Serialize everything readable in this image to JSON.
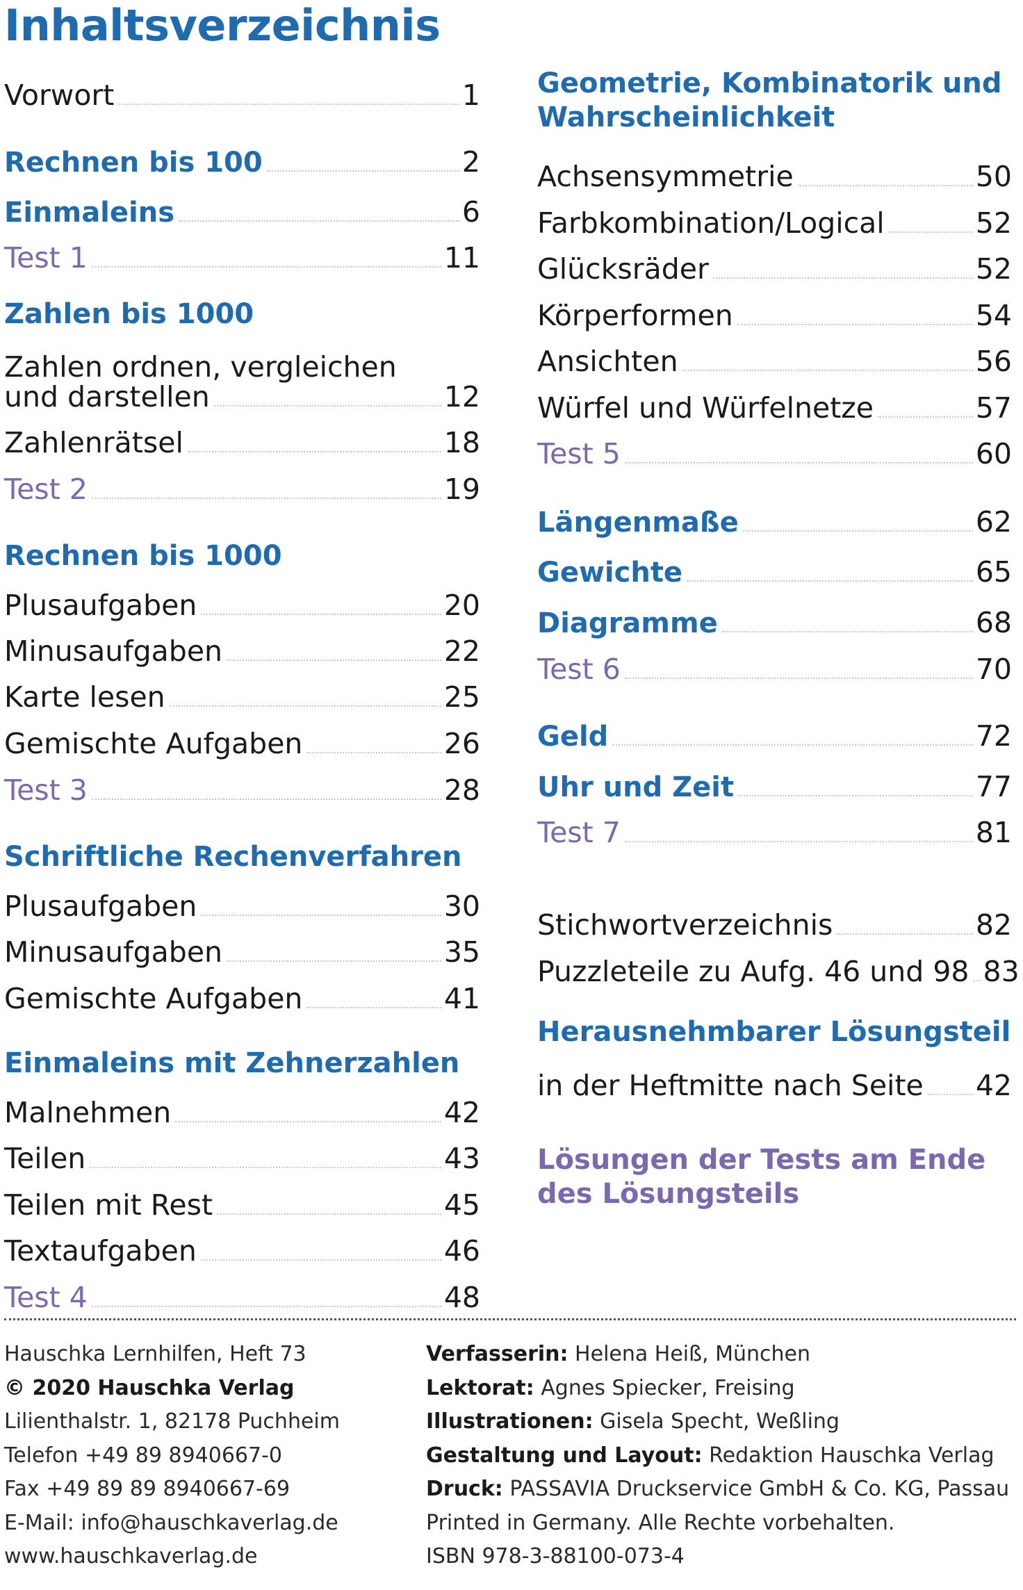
{
  "title": "Inhaltsverzeichnis",
  "left": {
    "vorwort": {
      "label": "Vorwort",
      "page": "1"
    },
    "rechnen100": {
      "label": "Rechnen bis 100",
      "page": "2"
    },
    "einmaleins": {
      "label": "Einmaleins",
      "page": "6"
    },
    "test1": {
      "label": "Test 1",
      "page": "11"
    },
    "zahlen1000_heading": "Zahlen bis 1000",
    "zahlen_ordnen_line1": "Zahlen ordnen, vergleichen",
    "zahlen_ordnen": {
      "label": "und darstellen",
      "page": "12"
    },
    "zahlenraetsel": {
      "label": "Zahlenrätsel",
      "page": "18"
    },
    "test2": {
      "label": "Test 2",
      "page": "19"
    },
    "rechnen1000_heading": "Rechnen bis 1000",
    "plus1": {
      "label": "Plusaufgaben",
      "page": "20"
    },
    "minus1": {
      "label": "Minusaufgaben",
      "page": "22"
    },
    "karte": {
      "label": "Karte lesen",
      "page": "25"
    },
    "gemischt1": {
      "label": "Gemischte Aufgaben",
      "page": "26"
    },
    "test3": {
      "label": "Test 3",
      "page": "28"
    },
    "schriftlich_heading": "Schriftliche Rechenverfahren",
    "plus2": {
      "label": "Plusaufgaben",
      "page": "30"
    },
    "minus2": {
      "label": "Minusaufgaben",
      "page": "35"
    },
    "gemischt2": {
      "label": "Gemischte Aufgaben",
      "page": "41"
    },
    "zehner_heading": "Einmaleins mit Zehnerzahlen",
    "malnehmen": {
      "label": "Malnehmen",
      "page": "42"
    },
    "teilen": {
      "label": "Teilen",
      "page": "43"
    },
    "teilen_rest": {
      "label": "Teilen mit Rest",
      "page": "45"
    },
    "textaufgaben": {
      "label": "Textaufgaben",
      "page": "46"
    },
    "test4": {
      "label": "Test 4",
      "page": "48"
    }
  },
  "right": {
    "geo_heading_1": "Geometrie, Kombinatorik und",
    "geo_heading_2": "Wahrscheinlichkeit",
    "achsen": {
      "label": "Achsensymmetrie",
      "page": "50"
    },
    "farb": {
      "label": "Farbkombination/Logical",
      "page": "52"
    },
    "gluck": {
      "label": "Glücksräder",
      "page": "52"
    },
    "koerper": {
      "label": "Körperformen",
      "page": "54"
    },
    "ansichten": {
      "label": "Ansichten",
      "page": "56"
    },
    "wuerfel": {
      "label": "Würfel und Würfelnetze",
      "page": "57"
    },
    "test5": {
      "label": "Test 5",
      "page": "60"
    },
    "laengen": {
      "label": "Längenmaße",
      "page": "62"
    },
    "gewichte": {
      "label": "Gewichte",
      "page": "65"
    },
    "diagramme": {
      "label": "Diagramme",
      "page": "68"
    },
    "test6": {
      "label": "Test 6",
      "page": "70"
    },
    "geld": {
      "label": "Geld",
      "page": "72"
    },
    "uhr": {
      "label": "Uhr und Zeit",
      "page": "77"
    },
    "test7": {
      "label": "Test 7",
      "page": "81"
    },
    "stichwort": {
      "label": "Stichwortverzeichnis",
      "page": "82"
    },
    "puzzle": {
      "label": "Puzzleteile zu Aufg. 46 und 98",
      "page": "83"
    },
    "loesung_heading": "Herausnehmbarer Lösungsteil",
    "heftmitte": {
      "label": "in der Heftmitte nach Seite",
      "page": "42"
    },
    "loesungen_tests_1": "Lösungen der Tests am Ende",
    "loesungen_tests_2": "des Lösungsteils"
  },
  "imprint_left": [
    "Hauschka Lernhilfen, Heft 73",
    "© 2020 Hauschka Verlag",
    "Lilienthalstr. 1, 82178 Puchheim",
    "Telefon +49 89 8940667-0",
    "Fax +49 89 89 8940667-69",
    "E-Mail: info@hauschkaverlag.de",
    "www.hauschkaverlag.de"
  ],
  "imprint_right": {
    "verfasserin_k": "Verfasserin:",
    "verfasserin_v": " Helena Heiß, München",
    "lektorat_k": "Lektorat:",
    "lektorat_v": " Agnes Spiecker, Freising",
    "illu_k": "Illustrationen:",
    "illu_v": " Gisela Specht, Weßling",
    "gestaltung_k": "Gestaltung und Layout:",
    "gestaltung_v": " Redaktion Hauschka Verlag",
    "druck_k": "Druck:",
    "druck_v": " PASSAVIA Druckservice GmbH & Co. KG, Passau",
    "printed": "Printed in Germany. Alle Rechte vorbehalten.",
    "isbn": "ISBN 978-3-88100-073-4"
  }
}
